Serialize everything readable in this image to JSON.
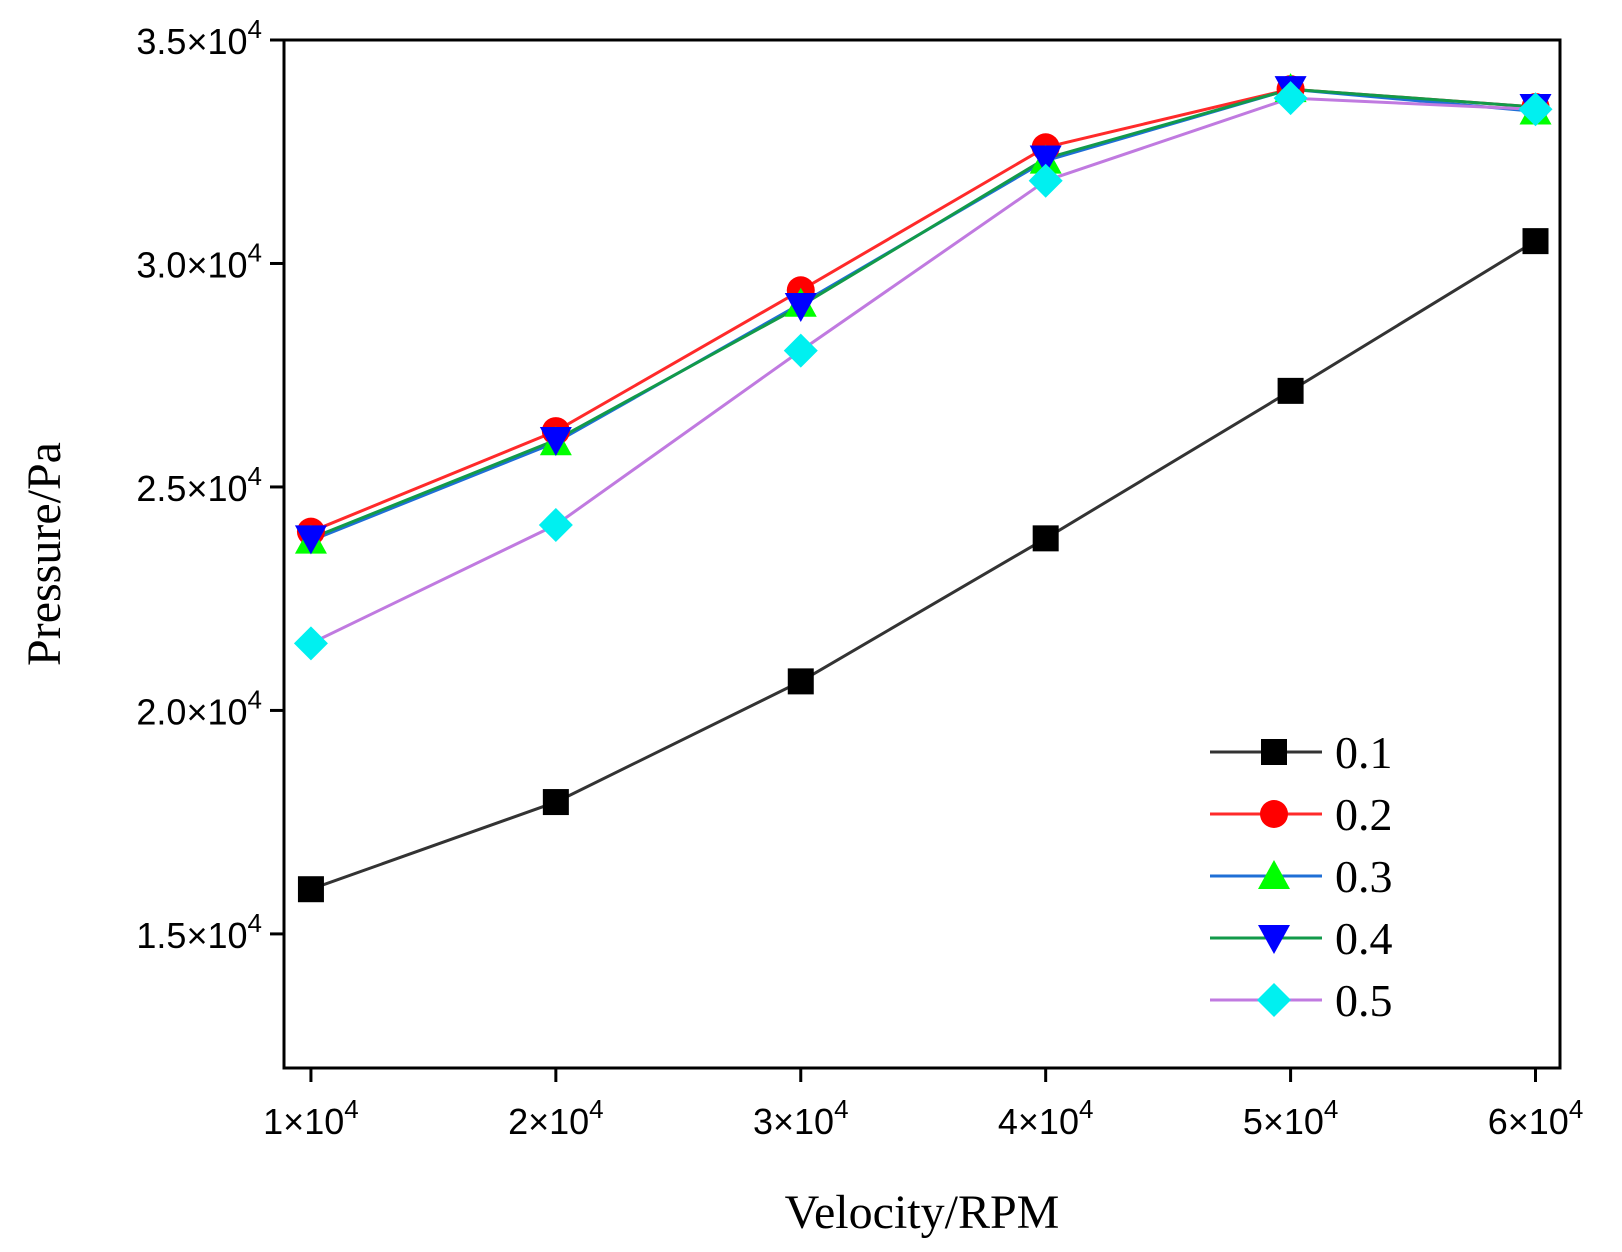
{
  "chart_data": {
    "type": "line",
    "title": "",
    "xlabel": "Velocity/RPM",
    "ylabel": "Pressure/Pa",
    "x": [
      10000,
      20000,
      30000,
      40000,
      50000,
      60000
    ],
    "xlim": [
      8900,
      61000
    ],
    "ylim": [
      12000,
      35000
    ],
    "xticks": [
      {
        "value": 10000,
        "mantissa": "1×10",
        "exp": "4"
      },
      {
        "value": 20000,
        "mantissa": "2×10",
        "exp": "4"
      },
      {
        "value": 30000,
        "mantissa": "3×10",
        "exp": "4"
      },
      {
        "value": 40000,
        "mantissa": "4×10",
        "exp": "4"
      },
      {
        "value": 50000,
        "mantissa": "5×10",
        "exp": "4"
      },
      {
        "value": 60000,
        "mantissa": "6×10",
        "exp": "4"
      }
    ],
    "yticks": [
      {
        "value": 15000,
        "mantissa": "1.5×10",
        "exp": "4"
      },
      {
        "value": 20000,
        "mantissa": "2.0×10",
        "exp": "4"
      },
      {
        "value": 25000,
        "mantissa": "2.5×10",
        "exp": "4"
      },
      {
        "value": 30000,
        "mantissa": "3.0×10",
        "exp": "4"
      },
      {
        "value": 35000,
        "mantissa": "3.5×10",
        "exp": "4"
      }
    ],
    "grid": false,
    "legend_position": "bottom-right",
    "series": [
      {
        "name": "0.1",
        "line_color": "#333333",
        "marker_color": "#000000",
        "marker": "square",
        "values": [
          16000,
          17950,
          20650,
          23850,
          27150,
          30500
        ]
      },
      {
        "name": "0.2",
        "line_color": "#ff2a2a",
        "marker_color": "#ff0000",
        "marker": "circle",
        "values": [
          24000,
          26250,
          29400,
          32600,
          33900,
          33500
        ]
      },
      {
        "name": "0.3",
        "line_color": "#1f6fd6",
        "marker_color": "#00ff00",
        "marker": "triangle-up",
        "values": [
          23800,
          26000,
          29100,
          32300,
          33900,
          33400
        ]
      },
      {
        "name": "0.4",
        "line_color": "#129a4a",
        "marker_color": "#0000ff",
        "marker": "triangle-down",
        "values": [
          23850,
          26050,
          29050,
          32350,
          33900,
          33500
        ]
      },
      {
        "name": "0.5",
        "line_color": "#c07ae0",
        "marker_color": "#00f0f0",
        "marker": "diamond",
        "values": [
          21500,
          24150,
          28050,
          31850,
          33700,
          33450
        ]
      }
    ]
  }
}
